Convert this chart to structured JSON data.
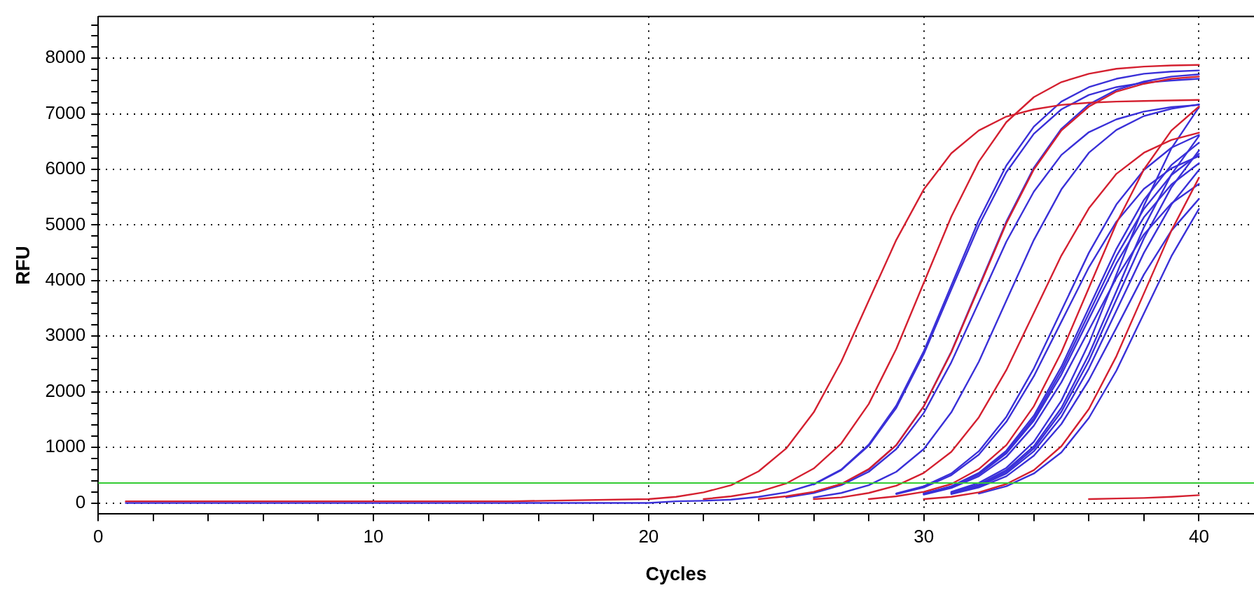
{
  "chart_data": {
    "type": "line",
    "xlabel": "Cycles",
    "ylabel": "RFU",
    "x": [
      1,
      5,
      10,
      15,
      20,
      21,
      22,
      23,
      24,
      25,
      26,
      27,
      28,
      29,
      30,
      31,
      32,
      33,
      34,
      35,
      36,
      37,
      38,
      39,
      40
    ],
    "xlim": [
      0,
      42
    ],
    "ylim": [
      -200,
      8750
    ],
    "xticks": [
      0,
      {
        "value": 2,
        "label": null
      },
      {
        "value": 4,
        "label": null
      },
      {
        "value": 6,
        "label": null
      },
      {
        "value": 8,
        "label": null
      },
      10,
      {
        "value": 12,
        "label": null
      },
      {
        "value": 14,
        "label": null
      },
      {
        "value": 16,
        "label": null
      },
      {
        "value": 18,
        "label": null
      },
      20,
      {
        "value": 22,
        "label": null
      },
      {
        "value": 24,
        "label": null
      },
      {
        "value": 26,
        "label": null
      },
      {
        "value": 28,
        "label": null
      },
      30,
      {
        "value": 32,
        "label": null
      },
      {
        "value": 34,
        "label": null
      },
      {
        "value": 36,
        "label": null
      },
      {
        "value": 38,
        "label": null
      },
      40
    ],
    "yticks": [
      0,
      {
        "value": 200,
        "label": null
      },
      {
        "value": 400,
        "label": null
      },
      {
        "value": 600,
        "label": null
      },
      {
        "value": 800,
        "label": null
      },
      1000,
      {
        "value": 1200,
        "label": null
      },
      {
        "value": 1400,
        "label": null
      },
      {
        "value": 1600,
        "label": null
      },
      {
        "value": 1800,
        "label": null
      },
      2000,
      {
        "value": 2200,
        "label": null
      },
      {
        "value": 2400,
        "label": null
      },
      {
        "value": 2600,
        "label": null
      },
      {
        "value": 2800,
        "label": null
      },
      3000,
      {
        "value": 3200,
        "label": null
      },
      {
        "value": 3400,
        "label": null
      },
      {
        "value": 3600,
        "label": null
      },
      {
        "value": 3800,
        "label": null
      },
      4000,
      {
        "value": 4200,
        "label": null
      },
      {
        "value": 4400,
        "label": null
      },
      {
        "value": 4600,
        "label": null
      },
      {
        "value": 4800,
        "label": null
      },
      5000,
      {
        "value": 5200,
        "label": null
      },
      {
        "value": 5400,
        "label": null
      },
      {
        "value": 5600,
        "label": null
      },
      {
        "value": 5800,
        "label": null
      },
      6000,
      {
        "value": 6200,
        "label": null
      },
      {
        "value": 6400,
        "label": null
      },
      {
        "value": 6600,
        "label": null
      },
      {
        "value": 6800,
        "label": null
      },
      7000,
      {
        "value": 7200,
        "label": null
      },
      {
        "value": 7400,
        "label": null
      },
      {
        "value": 7600,
        "label": null
      },
      {
        "value": 7800,
        "label": null
      },
      8000,
      {
        "value": 8200,
        "label": null
      },
      {
        "value": 8400,
        "label": null
      },
      {
        "value": 8600,
        "label": null
      }
    ],
    "grid": true,
    "legend": false,
    "ref_lines": [
      {
        "axis": "y",
        "value": 360,
        "color": "#33cc33"
      }
    ],
    "series": [
      {
        "color": "#d42030",
        "values": [
          30,
          30,
          30,
          30,
          70,
          110,
          190,
          320,
          570,
          980,
          1630,
          2540,
          3640,
          4730,
          5640,
          6290,
          6700,
          6950,
          7080,
          7160,
          7200,
          7220,
          7230,
          7240,
          7250
        ]
      },
      {
        "color": "#d42030",
        "values": [
          null,
          null,
          null,
          null,
          null,
          null,
          70,
          120,
          200,
          350,
          620,
          1070,
          1780,
          2770,
          3960,
          5150,
          6140,
          6850,
          7300,
          7570,
          7720,
          7810,
          7850,
          7870,
          7880
        ]
      },
      {
        "color": "#d42030",
        "values": [
          null,
          null,
          null,
          null,
          null,
          null,
          null,
          null,
          70,
          120,
          200,
          340,
          610,
          1040,
          1740,
          2710,
          3870,
          5030,
          6000,
          6700,
          7130,
          7400,
          7540,
          7630,
          7670
        ]
      },
      {
        "color": "#d42030",
        "values": [
          null,
          null,
          null,
          null,
          null,
          null,
          null,
          null,
          null,
          null,
          70,
          100,
          180,
          310,
          540,
          920,
          1540,
          2390,
          3420,
          4450,
          5300,
          5920,
          6300,
          6530,
          6660
        ]
      },
      {
        "color": "#d42030",
        "values": [
          null,
          null,
          null,
          null,
          null,
          null,
          null,
          null,
          null,
          null,
          null,
          null,
          70,
          120,
          200,
          340,
          610,
          1040,
          1740,
          2710,
          3870,
          5030,
          6000,
          6700,
          7130
        ]
      },
      {
        "color": "#d42030",
        "values": [
          null,
          null,
          null,
          null,
          null,
          null,
          null,
          null,
          null,
          null,
          null,
          null,
          null,
          null,
          70,
          110,
          190,
          340,
          590,
          1020,
          1690,
          2640,
          3770,
          4900,
          5850
        ]
      },
      {
        "color": "#d42030",
        "values": [
          null,
          null,
          null,
          null,
          null,
          null,
          null,
          null,
          null,
          null,
          null,
          null,
          null,
          null,
          null,
          null,
          null,
          null,
          null,
          null,
          70,
          80,
          90,
          110,
          140
        ]
      },
      {
        "color": "#3a30d8",
        "values": [
          0,
          0,
          0,
          0,
          0,
          30,
          40,
          60,
          110,
          190,
          340,
          600,
          1050,
          1750,
          2730,
          3910,
          5090,
          6070,
          6770,
          7220,
          7480,
          7630,
          7720,
          7760,
          7780
        ]
      },
      {
        "color": "#3a30d8",
        "values": [
          null,
          null,
          null,
          null,
          null,
          null,
          null,
          null,
          null,
          null,
          330,
          590,
          1030,
          1710,
          2680,
          3840,
          4990,
          5950,
          6640,
          7080,
          7340,
          7480,
          7560,
          7600,
          7630
        ]
      },
      {
        "color": "#3a30d8",
        "values": [
          null,
          null,
          null,
          null,
          null,
          null,
          null,
          null,
          null,
          null,
          190,
          340,
          600,
          1040,
          1740,
          2720,
          3890,
          5060,
          6030,
          6730,
          7170,
          7430,
          7580,
          7670,
          7710
        ]
      },
      {
        "color": "#3a30d8",
        "values": [
          null,
          null,
          null,
          null,
          null,
          null,
          null,
          null,
          null,
          100,
          180,
          320,
          560,
          970,
          1620,
          2530,
          3610,
          4700,
          5600,
          6260,
          6670,
          6900,
          7040,
          7120,
          7160
        ]
      },
      {
        "color": "#3a30d8",
        "values": [
          null,
          null,
          null,
          null,
          null,
          null,
          null,
          null,
          null,
          null,
          100,
          180,
          320,
          560,
          970,
          1630,
          2540,
          3640,
          4730,
          5640,
          6300,
          6710,
          6960,
          7090,
          7170
        ]
      },
      {
        "color": "#3a30d8",
        "values": [
          null,
          null,
          null,
          null,
          null,
          null,
          null,
          null,
          null,
          null,
          null,
          null,
          null,
          170,
          300,
          530,
          930,
          1550,
          2420,
          3460,
          4500,
          5370,
          5990,
          6390,
          6620
        ]
      },
      {
        "color": "#3a30d8",
        "values": [
          null,
          null,
          null,
          null,
          null,
          null,
          null,
          null,
          null,
          null,
          null,
          null,
          null,
          160,
          280,
          500,
          870,
          1460,
          2280,
          3260,
          4240,
          5060,
          5650,
          6020,
          6240
        ]
      },
      {
        "color": "#3a30d8",
        "values": [
          null,
          null,
          null,
          null,
          null,
          null,
          null,
          null,
          null,
          null,
          null,
          null,
          null,
          null,
          170,
          300,
          540,
          940,
          1570,
          2450,
          3510,
          4570,
          5450,
          6080,
          6480
        ]
      },
      {
        "color": "#3a30d8",
        "values": [
          null,
          null,
          null,
          null,
          null,
          null,
          null,
          null,
          null,
          null,
          null,
          null,
          null,
          null,
          160,
          290,
          510,
          890,
          1480,
          2310,
          3310,
          4310,
          5140,
          5730,
          6110
        ]
      },
      {
        "color": "#3a30d8",
        "values": [
          null,
          null,
          null,
          null,
          null,
          null,
          null,
          null,
          null,
          null,
          null,
          null,
          null,
          null,
          150,
          270,
          480,
          830,
          1390,
          2170,
          3110,
          4050,
          4830,
          5390,
          5740
        ]
      },
      {
        "color": "#3a30d8",
        "values": [
          null,
          null,
          null,
          null,
          null,
          null,
          null,
          null,
          null,
          null,
          null,
          null,
          null,
          null,
          170,
          290,
          520,
          910,
          1520,
          2380,
          3410,
          4440,
          5290,
          5900,
          6280
        ]
      },
      {
        "color": "#3a30d8",
        "values": [
          null,
          null,
          null,
          null,
          null,
          null,
          null,
          null,
          null,
          null,
          null,
          null,
          null,
          null,
          null,
          180,
          320,
          560,
          980,
          1640,
          2560,
          3660,
          4760,
          5680,
          6340
        ]
      },
      {
        "color": "#3a30d8",
        "values": [
          null,
          null,
          null,
          null,
          null,
          null,
          null,
          null,
          null,
          null,
          null,
          null,
          null,
          null,
          null,
          170,
          300,
          530,
          930,
          1550,
          2420,
          3460,
          4500,
          5370,
          5990
        ]
      },
      {
        "color": "#3a30d8",
        "values": [
          null,
          null,
          null,
          null,
          null,
          null,
          null,
          null,
          null,
          null,
          null,
          null,
          null,
          null,
          null,
          200,
          360,
          630,
          1100,
          1840,
          2870,
          4110,
          5350,
          6380,
          7120
        ]
      },
      {
        "color": "#3a30d8",
        "values": [
          null,
          null,
          null,
          null,
          null,
          null,
          null,
          null,
          null,
          null,
          null,
          null,
          null,
          null,
          null,
          160,
          280,
          480,
          850,
          1420,
          2210,
          3150,
          4110,
          4900,
          5470
        ]
      },
      {
        "color": "#3a30d8",
        "values": [
          null,
          null,
          null,
          null,
          null,
          null,
          null,
          null,
          null,
          null,
          null,
          null,
          null,
          null,
          null,
          190,
          330,
          590,
          1020,
          1710,
          2670,
          3810,
          4960,
          5910,
          6600
        ]
      },
      {
        "color": "#3a30d8",
        "values": [
          null,
          null,
          null,
          null,
          null,
          null,
          null,
          null,
          null,
          null,
          null,
          null,
          null,
          null,
          null,
          null,
          170,
          300,
          530,
          910,
          1530,
          2380,
          3410,
          4440,
          5290
        ]
      }
    ]
  }
}
